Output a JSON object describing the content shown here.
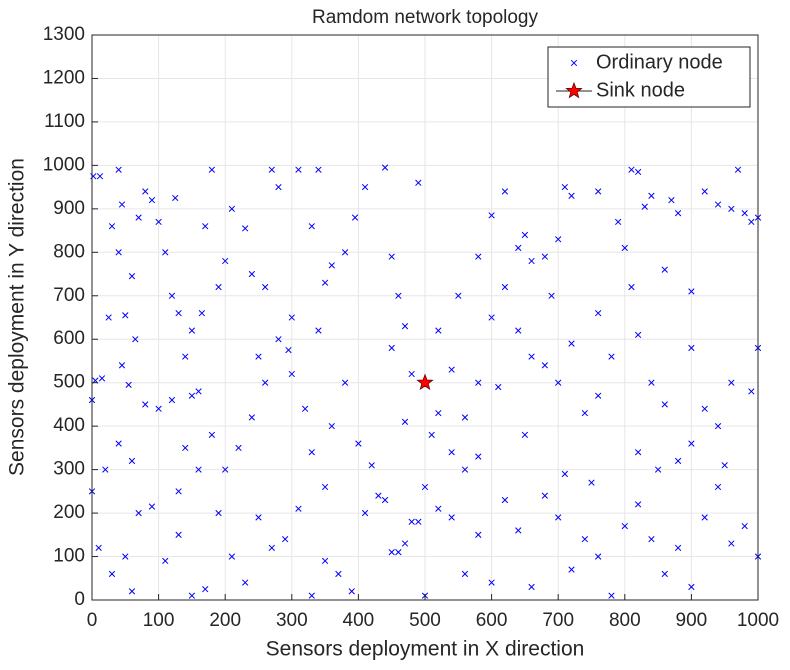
{
  "chart_data": {
    "type": "scatter",
    "title": "Ramdom network topology",
    "xlabel": "Sensors deployment in X direction",
    "ylabel": "Sensors deployment in Y direction",
    "xlim": [
      0,
      1000
    ],
    "ylim": [
      0,
      1300
    ],
    "xticks": [
      0,
      100,
      200,
      300,
      400,
      500,
      600,
      700,
      800,
      900,
      1000
    ],
    "yticks": [
      0,
      100,
      200,
      300,
      400,
      500,
      600,
      700,
      800,
      900,
      1000,
      1100,
      1200,
      1300
    ],
    "grid": true,
    "legend": "upper right",
    "series": [
      {
        "name": "Ordinary node",
        "color": "#0000ff",
        "marker": "x",
        "x": [
          2,
          12,
          0,
          5,
          15,
          25,
          30,
          40,
          45,
          40,
          50,
          55,
          45,
          60,
          65,
          70,
          80,
          90,
          100,
          110,
          120,
          130,
          125,
          140,
          150,
          160,
          165,
          170,
          180,
          190,
          200,
          210,
          230,
          240,
          260,
          270,
          280,
          295,
          300,
          310,
          330,
          340,
          350,
          360,
          380,
          395,
          410,
          440,
          450,
          460,
          470,
          480,
          490,
          510,
          520,
          540,
          560,
          580,
          600,
          620,
          640,
          650,
          660,
          680,
          700,
          710,
          720,
          760,
          790,
          810,
          820,
          830,
          840,
          860,
          870,
          880,
          900,
          920,
          940,
          960,
          970,
          980,
          990,
          1000,
          1000,
          990,
          960,
          940,
          920,
          900,
          880,
          860,
          840,
          820,
          810,
          800,
          780,
          760,
          740,
          720,
          700,
          680,
          660,
          640,
          620,
          600,
          580,
          560,
          540,
          520,
          500,
          480,
          460,
          440,
          420,
          400,
          380,
          360,
          340,
          320,
          300,
          280,
          260,
          240,
          220,
          200,
          180,
          160,
          140,
          120,
          100,
          80,
          60,
          40,
          20,
          0,
          10,
          30,
          50,
          70,
          90,
          110,
          130,
          150,
          170,
          190,
          210,
          230,
          250,
          270,
          290,
          310,
          330,
          350,
          370,
          390,
          410,
          430,
          450,
          470,
          490,
          500,
          520,
          540,
          560,
          580,
          600,
          620,
          640,
          660,
          680,
          700,
          720,
          740,
          760,
          780,
          800,
          820,
          840,
          860,
          880,
          900,
          920,
          940,
          960,
          980,
          1000,
          550,
          450,
          350,
          250,
          150,
          650,
          750,
          850,
          950,
          580,
          760,
          690,
          820,
          900,
          330,
          130,
          60,
          470,
          610,
          710
        ],
        "values": [
          975,
          975,
          460,
          505,
          510,
          650,
          860,
          990,
          910,
          800,
          655,
          495,
          540,
          745,
          600,
          880,
          940,
          920,
          870,
          800,
          700,
          660,
          925,
          560,
          470,
          480,
          660,
          860,
          990,
          720,
          780,
          900,
          855,
          750,
          720,
          990,
          950,
          575,
          650,
          990,
          860,
          990,
          730,
          770,
          800,
          880,
          950,
          995,
          790,
          700,
          630,
          520,
          960,
          380,
          430,
          340,
          300,
          330,
          885,
          940,
          810,
          840,
          780,
          790,
          830,
          950,
          930,
          940,
          870,
          990,
          985,
          905,
          930,
          760,
          920,
          890,
          710,
          940,
          910,
          900,
          990,
          890,
          870,
          880,
          580,
          480,
          500,
          400,
          440,
          360,
          320,
          450,
          500,
          610,
          720,
          810,
          560,
          470,
          430,
          590,
          500,
          540,
          560,
          620,
          720,
          650,
          500,
          420,
          530,
          620,
          260,
          180,
          110,
          230,
          310,
          360,
          500,
          400,
          620,
          440,
          520,
          600,
          500,
          420,
          350,
          300,
          380,
          300,
          350,
          460,
          440,
          450,
          320,
          360,
          300,
          250,
          120,
          60,
          100,
          200,
          215,
          90,
          150,
          10,
          25,
          200,
          100,
          40,
          190,
          120,
          140,
          210,
          10,
          90,
          60,
          20,
          200,
          240,
          110,
          130,
          180,
          10,
          210,
          190,
          60,
          150,
          40,
          230,
          160,
          30,
          240,
          190,
          70,
          140,
          100,
          10,
          170,
          220,
          140,
          60,
          120,
          30,
          190,
          260,
          130,
          170,
          100,
          700,
          580,
          260,
          560,
          620,
          380,
          270,
          300,
          310,
          790,
          660,
          700,
          340,
          580,
          340,
          250,
          20,
          410,
          490,
          290
        ]
      },
      {
        "name": "Sink node",
        "color": "#ff0000",
        "marker": "star",
        "x": [
          500
        ],
        "values": [
          500
        ]
      }
    ]
  }
}
